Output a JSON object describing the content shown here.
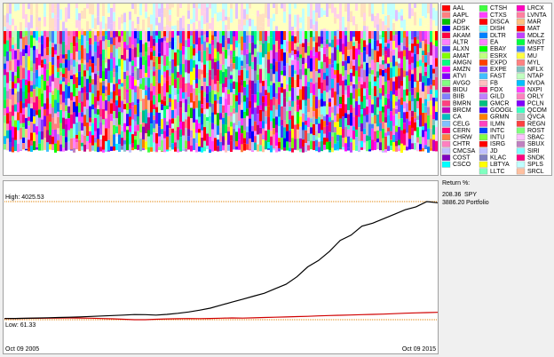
{
  "legend": {
    "tickers": [
      "AAL",
      "AAPL",
      "ADP",
      "ADSK",
      "AKAM",
      "ALTR",
      "ALXN",
      "AMAT",
      "AMGN",
      "AMZN",
      "ATVI",
      "AVGO",
      "BIDU",
      "BIIB",
      "BMRN",
      "BRCM",
      "CA",
      "CELG",
      "CERN",
      "CHRW",
      "CHTR",
      "CMCSA",
      "COST",
      "CSCO",
      "CTSH",
      "CTXS",
      "DISCA",
      "DISH",
      "DLTR",
      "EA",
      "EBAY",
      "ESRX",
      "EXPD",
      "EXPE",
      "FAST",
      "FB",
      "FOX",
      "GILD",
      "GMCR",
      "GOOGL",
      "GRMN",
      "ILMN",
      "INTC",
      "INTU",
      "ISRG",
      "JD",
      "KLAC",
      "LBTYA",
      "LLTC",
      "LRCX",
      "LVNTA",
      "MAR",
      "MAT",
      "MDLZ",
      "MNST",
      "MSFT",
      "MU",
      "MYL",
      "NFLX",
      "NTAP",
      "NVDA",
      "NXPI",
      "ORLY",
      "PCLN",
      "QCOM",
      "QVCA",
      "REGN",
      "ROST",
      "SBAC",
      "SBUX",
      "SIRI",
      "SNDK",
      "SPLS",
      "SRCL"
    ],
    "colors": [
      "#ff0000",
      "#ff8080",
      "#00c000",
      "#0000ff",
      "#ff0040",
      "#ff80ff",
      "#4040ff",
      "#80ff00",
      "#00ff80",
      "#ff00ff",
      "#8000ff",
      "#80ff80",
      "#c00080",
      "#8080ff",
      "#ff4080",
      "#c000c0",
      "#00c0c0",
      "#80c0ff",
      "#ff0080",
      "#ff8040",
      "#ff80c0",
      "#c0c0ff",
      "#8000c0",
      "#00ffff",
      "#40ff40",
      "#ff40ff",
      "#ff0000",
      "#80ffff",
      "#0080ff",
      "#ff80ff",
      "#00ff00",
      "#c0ff80",
      "#ff4000",
      "#8040ff",
      "#40c0ff",
      "#ffc0c0",
      "#ff0080",
      "#c080ff",
      "#00c080",
      "#4000ff",
      "#ff8000",
      "#ff40c0",
      "#0040ff",
      "#80ff40",
      "#ff0000",
      "#c0c0ff",
      "#8080c0",
      "#ffff00",
      "#80ffc0",
      "#ff00c0",
      "#ff80a0",
      "#ffc080",
      "#ff0000",
      "#c040ff",
      "#00ff40",
      "#4080ff",
      "#ffff40",
      "#ff8080",
      "#80c0c0",
      "#c0ffc0",
      "#00c0ff",
      "#ff40ff",
      "#ff80c0",
      "#8000ff",
      "#40ffc0",
      "#c0c0c0",
      "#ff4040",
      "#80ff80",
      "#ffc0ff",
      "#c080c0",
      "#80ffff",
      "#ff0080",
      "#c0ffff",
      "#ffc0a0"
    ]
  },
  "chart_data": {
    "type": "line",
    "categories": [
      "Oct 09 2005",
      null,
      null,
      null,
      null,
      null,
      null,
      null,
      null,
      null,
      null,
      null,
      null,
      null,
      null,
      null,
      null,
      null,
      null,
      null,
      null,
      null,
      null,
      null,
      null,
      null,
      null,
      null,
      null,
      null,
      null,
      null,
      null,
      null,
      null,
      null,
      null,
      null,
      null,
      null,
      "Oct 09 2015"
    ],
    "legend_title": "Return %:",
    "series": [
      {
        "name": "SPY",
        "color": "#d00000",
        "return": 208.36,
        "return_label": "208.36",
        "values": [
          100,
          103,
          106,
          110,
          113,
          118,
          122,
          118,
          112,
          100,
          90,
          75,
          62,
          61.33,
          75,
          88,
          95,
          100,
          98,
          104,
          112,
          120,
          115,
          125,
          135,
          145,
          155,
          165,
          175,
          190,
          200,
          210,
          220,
          230,
          240,
          250,
          265,
          280,
          290,
          300,
          308.36
        ]
      },
      {
        "name": "Portfolio",
        "color": "#000000",
        "return": 3886.2,
        "return_label": "3886.20",
        "values": [
          100,
          104,
          110,
          118,
          126,
          135,
          145,
          158,
          170,
          185,
          200,
          215,
          235,
          230,
          215,
          240,
          275,
          320,
          380,
          450,
          550,
          650,
          750,
          850,
          950,
          1100,
          1250,
          1500,
          1836,
          2050,
          2350,
          2724,
          2900,
          3200,
          3300,
          3450,
          3600,
          3750,
          3850,
          4025.53,
          3986
        ]
      }
    ],
    "ylim": [
      -684,
      4681
    ],
    "yticks": [
      {
        "value": 4025.53,
        "label": "High: 4025.53"
      },
      {
        "value": 61.33,
        "label": "Low: 61.33"
      }
    ]
  }
}
